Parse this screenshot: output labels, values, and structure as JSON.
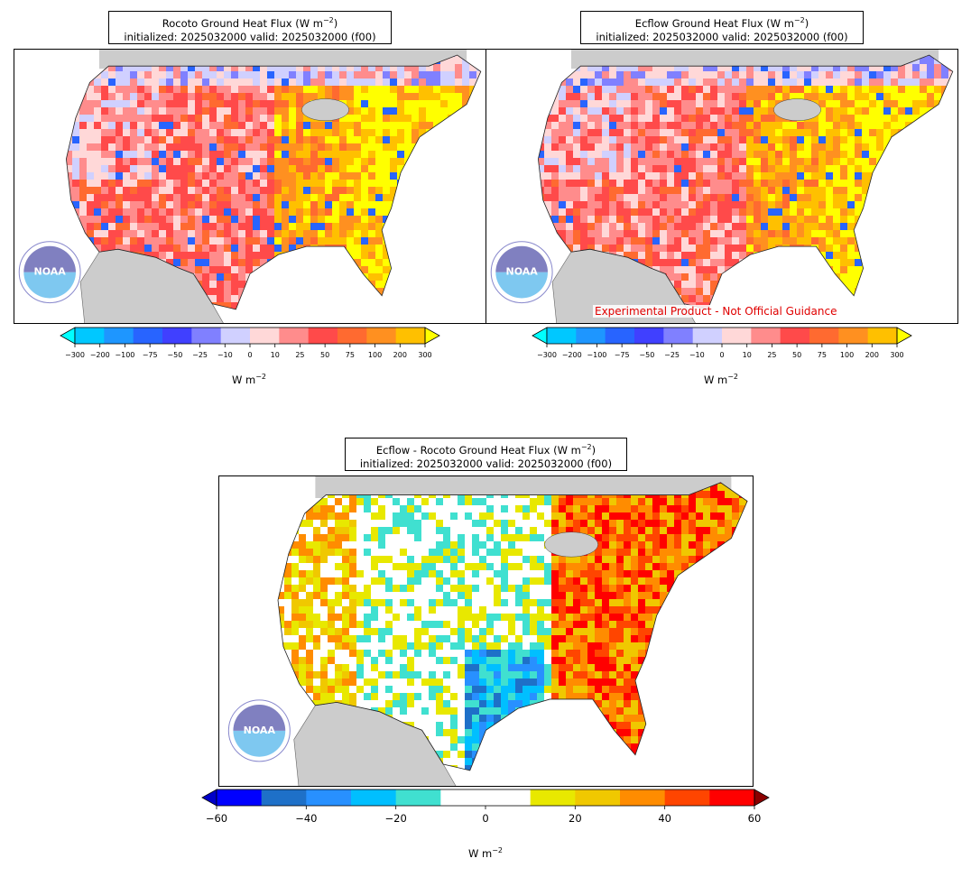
{
  "panels": [
    {
      "title_line1": "Rocoto Ground Heat Flux (W m",
      "title_sup": "−2",
      "title_line1_end": ")",
      "title_line2": "initialized: 2025032000 valid: 2025032000 (f00)",
      "colorbar_ticks": [
        "−300",
        "−200",
        "−100",
        "−75",
        "−50",
        "−25",
        "−10",
        "0",
        "10",
        "25",
        "50",
        "75",
        "100",
        "200",
        "300"
      ],
      "colorbar_unit": "W m",
      "colorbar_unit_sup": "−2"
    },
    {
      "title_line1": "Ecflow Ground Heat Flux (W m",
      "title_sup": "−2",
      "title_line1_end": ")",
      "title_line2": "initialized: 2025032000 valid: 2025032000 (f00)",
      "watermark": "Experimental Product - Not Official Guidance",
      "colorbar_ticks": [
        "−300",
        "−200",
        "−100",
        "−75",
        "−50",
        "−25",
        "−10",
        "0",
        "10",
        "25",
        "50",
        "75",
        "100",
        "200",
        "300"
      ],
      "colorbar_unit": "W m",
      "colorbar_unit_sup": "−2"
    },
    {
      "title_line1": "Ecflow - Rocoto Ground Heat Flux (W m",
      "title_sup": "−2",
      "title_line1_end": ")",
      "title_line2": "initialized: 2025032000 valid: 2025032000 (f00)",
      "colorbar_ticks": [
        "−60",
        "−40",
        "−20",
        "0",
        "20",
        "40",
        "60"
      ],
      "colorbar_unit": "W m",
      "colorbar_unit_sup": "−2"
    }
  ],
  "logo_text": "NOAA",
  "flux_colors": [
    "#00ffff",
    "#00c8ff",
    "#1e96ff",
    "#2864ff",
    "#4040ff",
    "#8080ff",
    "#d0d0ff",
    "#ffd8d8",
    "#ff8c8c",
    "#ff4a4a",
    "#ff6a30",
    "#ff9020",
    "#ffc000",
    "#ffff00"
  ],
  "diff_colors": [
    "#0000c8",
    "#0000ff",
    "#1e70c8",
    "#2890ff",
    "#00bfff",
    "#40e0d0",
    "#ffffff",
    "#ffffff",
    "#e8e800",
    "#f0c800",
    "#ff8c00",
    "#ff4500",
    "#ff0000",
    "#8b0000"
  ],
  "land_gray": "#cccccc"
}
